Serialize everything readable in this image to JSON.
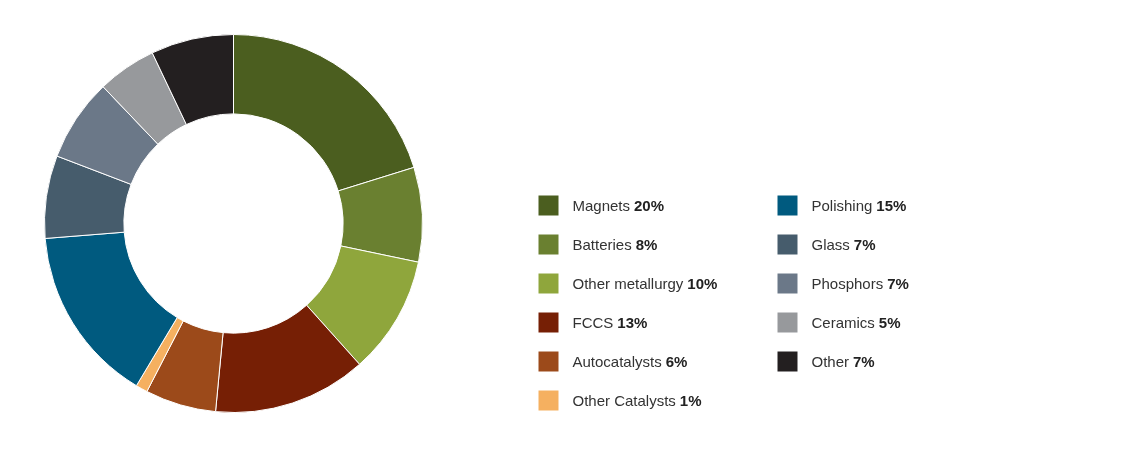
{
  "chart_data": {
    "type": "donut",
    "categories": [
      "Magnets",
      "Batteries",
      "Other metallurgy",
      "FCCS",
      "Autocatalysts",
      "Other Catalysts",
      "Polishing",
      "Glass",
      "Phosphors",
      "Ceramics",
      "Other"
    ],
    "values": [
      20,
      8,
      10,
      13,
      6,
      1,
      15,
      7,
      7,
      5,
      7
    ],
    "value_labels": [
      "20%",
      "8%",
      "10%",
      "13%",
      "6%",
      "1%",
      "15%",
      "7%",
      "7%",
      "5%",
      "7%"
    ],
    "colors": [
      "#4b5e1f",
      "#6a8030",
      "#8fa63c",
      "#761f05",
      "#9c4a1a",
      "#f5b060",
      "#005a7f",
      "#465c6c",
      "#6b7888",
      "#97999c",
      "#231f20"
    ],
    "legend": "right"
  }
}
